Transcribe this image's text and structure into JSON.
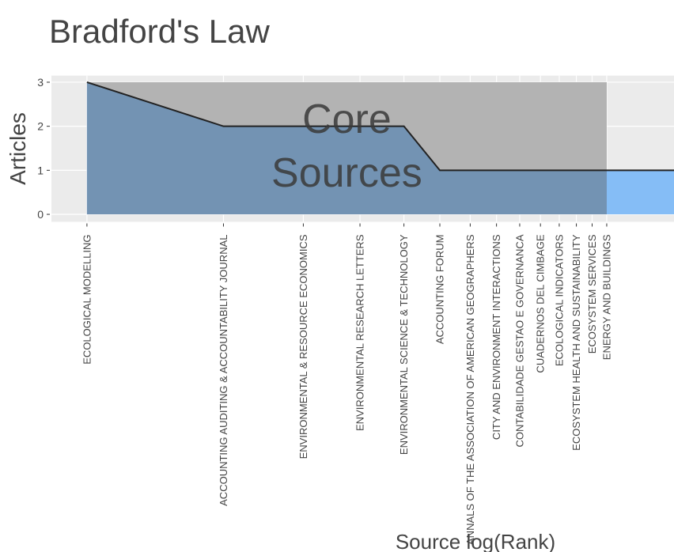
{
  "chart_data": {
    "type": "area",
    "title": "Bradford's Law",
    "x_label": "Source log(Rank)",
    "y_label": "Articles",
    "annotation": [
      "Core",
      "Sources"
    ],
    "x": [
      1,
      2,
      3,
      4,
      5,
      6,
      7,
      8,
      9,
      10,
      11,
      12,
      13,
      14,
      15,
      16,
      17,
      18,
      19,
      20
    ],
    "categories": [
      "ECOLOGICAL MODELLING",
      "ACCOUNTING AUDITING & ACCOUNTABILITY JOURNAL",
      "ENVIRONMENTAL & RESOURCE ECONOMICS",
      "ENVIRONMENTAL RESEARCH LETTERS",
      "ENVIRONMENTAL SCIENCE & TECHNOLOGY",
      "ACCOUNTING FORUM",
      "ANNALS OF THE ASSOCIATION OF AMERICAN GEOGRAPHERS",
      "CITY AND ENVIRONMENT INTERACTIONS",
      "CONTABILIDADE GESTAO E GOVERNANCA",
      "CUADERNOS DEL CIMBAGE",
      "ECOLOGICAL INDICATORS",
      "ECOSYSTEM HEALTH AND SUSTAINABILITY",
      "ECOSYSTEM SERVICES",
      "ENERGY AND BUILDINGS",
      null,
      null,
      null,
      null,
      null,
      null
    ],
    "values": [
      3,
      2,
      2,
      2,
      2,
      1,
      1,
      1,
      1,
      1,
      1,
      1,
      1,
      1,
      1,
      1,
      1,
      1,
      1,
      1
    ],
    "core_range": [
      1,
      14
    ],
    "xscale": "log",
    "xlim": [
      0.835,
      19.7
    ],
    "ylim": [
      -0.17,
      3.15
    ],
    "yticks": [
      0,
      1,
      2,
      3
    ],
    "grid": true,
    "background_color": "#ebebeb",
    "core_color": "#b3b3b3",
    "area_color": "#85bdf6",
    "core_area_color": "#7393b3",
    "line_color": "#222222"
  }
}
